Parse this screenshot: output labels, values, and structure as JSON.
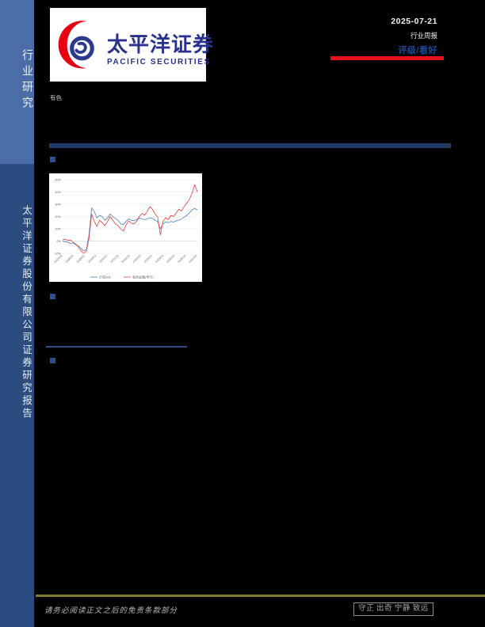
{
  "sidebar": {
    "top_label": "行业研究",
    "bottom_label": "太平洋证券股份有限公司证券研究报告",
    "top_bg": "#4a6da7",
    "bottom_bg": "#2b4c7e"
  },
  "header": {
    "logo_cn": "太平洋证券",
    "logo_en": "PACIFIC SECURITIES",
    "brand_blue": "#28318e",
    "brand_red": "#e60012",
    "date": "2025-07-21",
    "report_type": "行业周报",
    "rating_label": "评级/看好",
    "rating_color": "#1b4a9a",
    "accent_red_bar": "#e8111c"
  },
  "industry_tag": "有色",
  "divider_color": "#203c66",
  "chart_data": {
    "type": "line",
    "title": "",
    "xlabel": "",
    "ylabel": "",
    "ylim": [
      -10,
      50
    ],
    "ytick_labels": [
      "50%",
      "40%",
      "30%",
      "20%",
      "10%",
      "0%",
      "-10%"
    ],
    "ytick_values": [
      50,
      40,
      30,
      20,
      10,
      0,
      -10
    ],
    "x_labels": [
      "24/07/22",
      "24/08/22",
      "24/09/22",
      "24/10/22",
      "24/11/22",
      "24/12/22",
      "25/01/22",
      "25/02/22",
      "25/03/22",
      "25/04/22",
      "25/05/22",
      "25/06/22",
      "25/07/22"
    ],
    "grid": true,
    "legend_position": "bottom",
    "series": [
      {
        "name": "沪深300",
        "color": "#4a7ebb",
        "values": [
          0,
          -0.5,
          -1,
          -2,
          -1.5,
          -3,
          -4,
          -6,
          -8,
          -7,
          5,
          27,
          24,
          19,
          21,
          20,
          17,
          19,
          22,
          20,
          18.5,
          17,
          14,
          13.5,
          16,
          18,
          17,
          16.5,
          17.5,
          19,
          18,
          17.5,
          18,
          19,
          18.5,
          17,
          16,
          10,
          14,
          15.5,
          15,
          16,
          15.5,
          16.5,
          17,
          18,
          19.5,
          21,
          23,
          25.5,
          26.5,
          25.5
        ]
      },
      {
        "name": "有色金属(申万)",
        "color": "#e83c3c",
        "values": [
          1,
          1.5,
          0.5,
          1,
          -1,
          -2.5,
          -5,
          -8,
          -10,
          -8,
          2,
          22,
          16,
          12,
          17,
          15,
          12.5,
          16,
          20,
          17,
          14,
          12.5,
          10,
          8,
          13,
          16.5,
          14.5,
          14,
          16,
          20,
          22.5,
          21,
          24,
          28,
          26,
          22,
          19.5,
          5,
          16,
          19,
          17.5,
          21,
          20,
          23,
          26,
          24.5,
          28,
          31,
          34,
          39,
          46,
          40
        ]
      }
    ]
  },
  "footer": {
    "disclaimer": "请务必阅读正文之后的免责条款部分",
    "motto": "守正 出奇 宁静 致远",
    "line_color": "#857c33"
  }
}
